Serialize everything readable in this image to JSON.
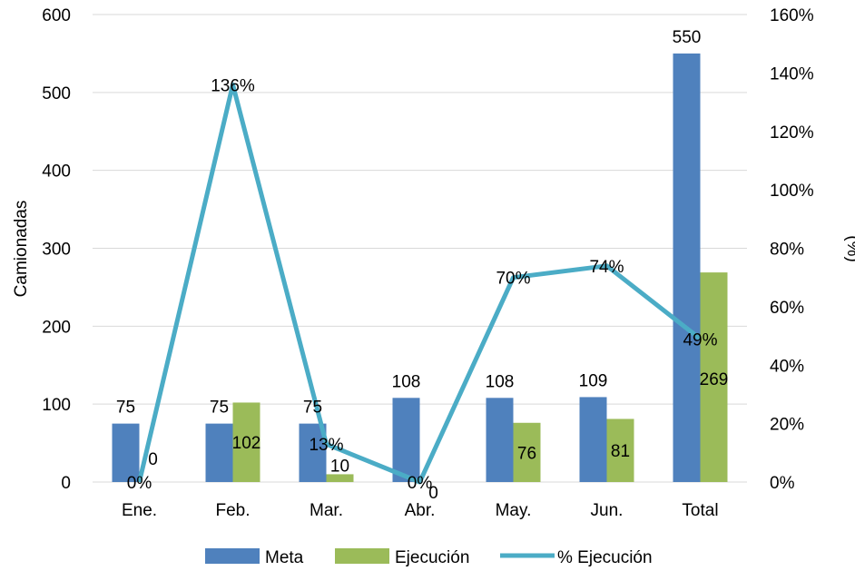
{
  "chart_data": {
    "type": "bar",
    "categories": [
      "Ene.",
      "Feb.",
      "Mar.",
      "Abr.",
      "May.",
      "Jun.",
      "Total"
    ],
    "series": [
      {
        "name": "Meta",
        "kind": "bar",
        "axis": "left",
        "color": "#4F81BD",
        "values": [
          75,
          75,
          75,
          108,
          108,
          109,
          550
        ]
      },
      {
        "name": "Ejecución",
        "kind": "bar",
        "axis": "left",
        "color": "#9BBB59",
        "values": [
          0,
          102,
          10,
          0,
          76,
          81,
          269
        ]
      },
      {
        "name": "% Ejecución",
        "kind": "line",
        "axis": "right",
        "color": "#4BACC6",
        "values": [
          0,
          136,
          13,
          0,
          70,
          74,
          49
        ],
        "labels": [
          "0%",
          "136%",
          "13%",
          "0%",
          "70%",
          "74%",
          "49%"
        ]
      }
    ],
    "ylabel": "Camionadas",
    "y2label": "(%)",
    "ylim": [
      0,
      600
    ],
    "yticks": [
      0,
      100,
      200,
      300,
      400,
      500,
      600
    ],
    "y2lim": [
      0,
      160
    ],
    "y2ticks": [
      "0%",
      "20%",
      "40%",
      "60%",
      "80%",
      "100%",
      "120%",
      "140%",
      "160%"
    ],
    "grid": true,
    "legend_position": "bottom"
  }
}
